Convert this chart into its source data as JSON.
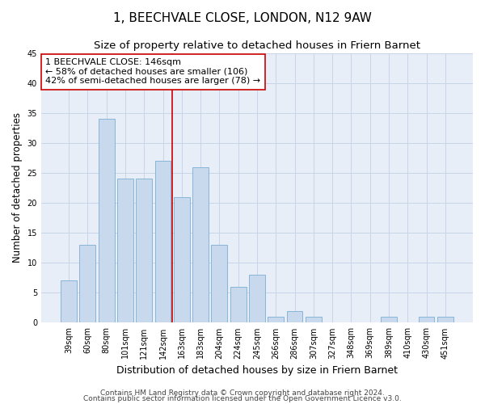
{
  "title": "1, BEECHVALE CLOSE, LONDON, N12 9AW",
  "subtitle": "Size of property relative to detached houses in Friern Barnet",
  "xlabel": "Distribution of detached houses by size in Friern Barnet",
  "ylabel": "Number of detached properties",
  "categories": [
    "39sqm",
    "60sqm",
    "80sqm",
    "101sqm",
    "121sqm",
    "142sqm",
    "163sqm",
    "183sqm",
    "204sqm",
    "224sqm",
    "245sqm",
    "266sqm",
    "286sqm",
    "307sqm",
    "327sqm",
    "348sqm",
    "369sqm",
    "389sqm",
    "410sqm",
    "430sqm",
    "451sqm"
  ],
  "values": [
    7,
    13,
    34,
    24,
    24,
    27,
    21,
    26,
    13,
    6,
    8,
    1,
    2,
    1,
    0,
    0,
    0,
    1,
    0,
    1,
    1
  ],
  "bar_color": "#c8d9ee",
  "bar_edgecolor": "#7bafd4",
  "vline_color": "#cc0000",
  "vline_pos": 5.5,
  "annotation_line1": "1 BEECHVALE CLOSE: 146sqm",
  "annotation_line2": "← 58% of detached houses are smaller (106)",
  "annotation_line3": "42% of semi-detached houses are larger (78) →",
  "annotation_box_edgecolor": "#cc0000",
  "ylim": [
    0,
    45
  ],
  "yticks": [
    0,
    5,
    10,
    15,
    20,
    25,
    30,
    35,
    40,
    45
  ],
  "grid_color": "#c8d4e8",
  "background_color": "#e8eef8",
  "footnote1": "Contains HM Land Registry data © Crown copyright and database right 2024.",
  "footnote2": "Contains public sector information licensed under the Open Government Licence v3.0.",
  "title_fontsize": 11,
  "subtitle_fontsize": 9.5,
  "xlabel_fontsize": 9,
  "ylabel_fontsize": 8.5,
  "tick_fontsize": 7,
  "annotation_fontsize": 8,
  "footnote_fontsize": 6.5
}
